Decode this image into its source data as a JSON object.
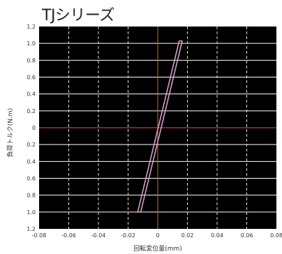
{
  "chart_data": {
    "type": "line",
    "title": "TJシリーズ",
    "xlabel": "回転変位量(mm)",
    "ylabel": "負荷トルク(N.m)",
    "xlim": [
      -0.08,
      0.08
    ],
    "ylim": [
      -1.2,
      1.2
    ],
    "x_ticks": [
      -0.08,
      -0.06,
      -0.04,
      -0.02,
      0,
      0.02,
      0.04,
      0.06,
      0.08
    ],
    "x_tick_labels": [
      "-0.08",
      "-0.06",
      "-0.04",
      "-0.02",
      "0",
      "0.02",
      "0.04",
      "0.06",
      "0.08"
    ],
    "y_ticks": [
      1.2,
      1.0,
      0.8,
      0.6,
      0.4,
      0.2,
      0,
      -0.2,
      -0.4,
      -0.6,
      -0.8,
      -1.0,
      -1.2
    ],
    "y_tick_labels": [
      "1.2",
      "1.0",
      "0.8",
      "0.6",
      "0.4",
      "0.2",
      "0",
      "0.2",
      "0.4",
      "0.6",
      "0.8",
      "1.0",
      "1.2"
    ],
    "grid": true,
    "background_color": "#000000",
    "grid_color_horizontal": "#ffffff",
    "grid_color_vertical": "#dddddd",
    "zero_line_color": "#e03030",
    "series": [
      {
        "color": "#d6a0c8",
        "x": [
          -0.0135,
          0.0145
        ],
        "y": [
          -1.0,
          1.03
        ]
      },
      {
        "color": "#d6a0c8",
        "x": [
          -0.0115,
          0.0165
        ],
        "y": [
          -1.0,
          1.03
        ]
      }
    ]
  }
}
